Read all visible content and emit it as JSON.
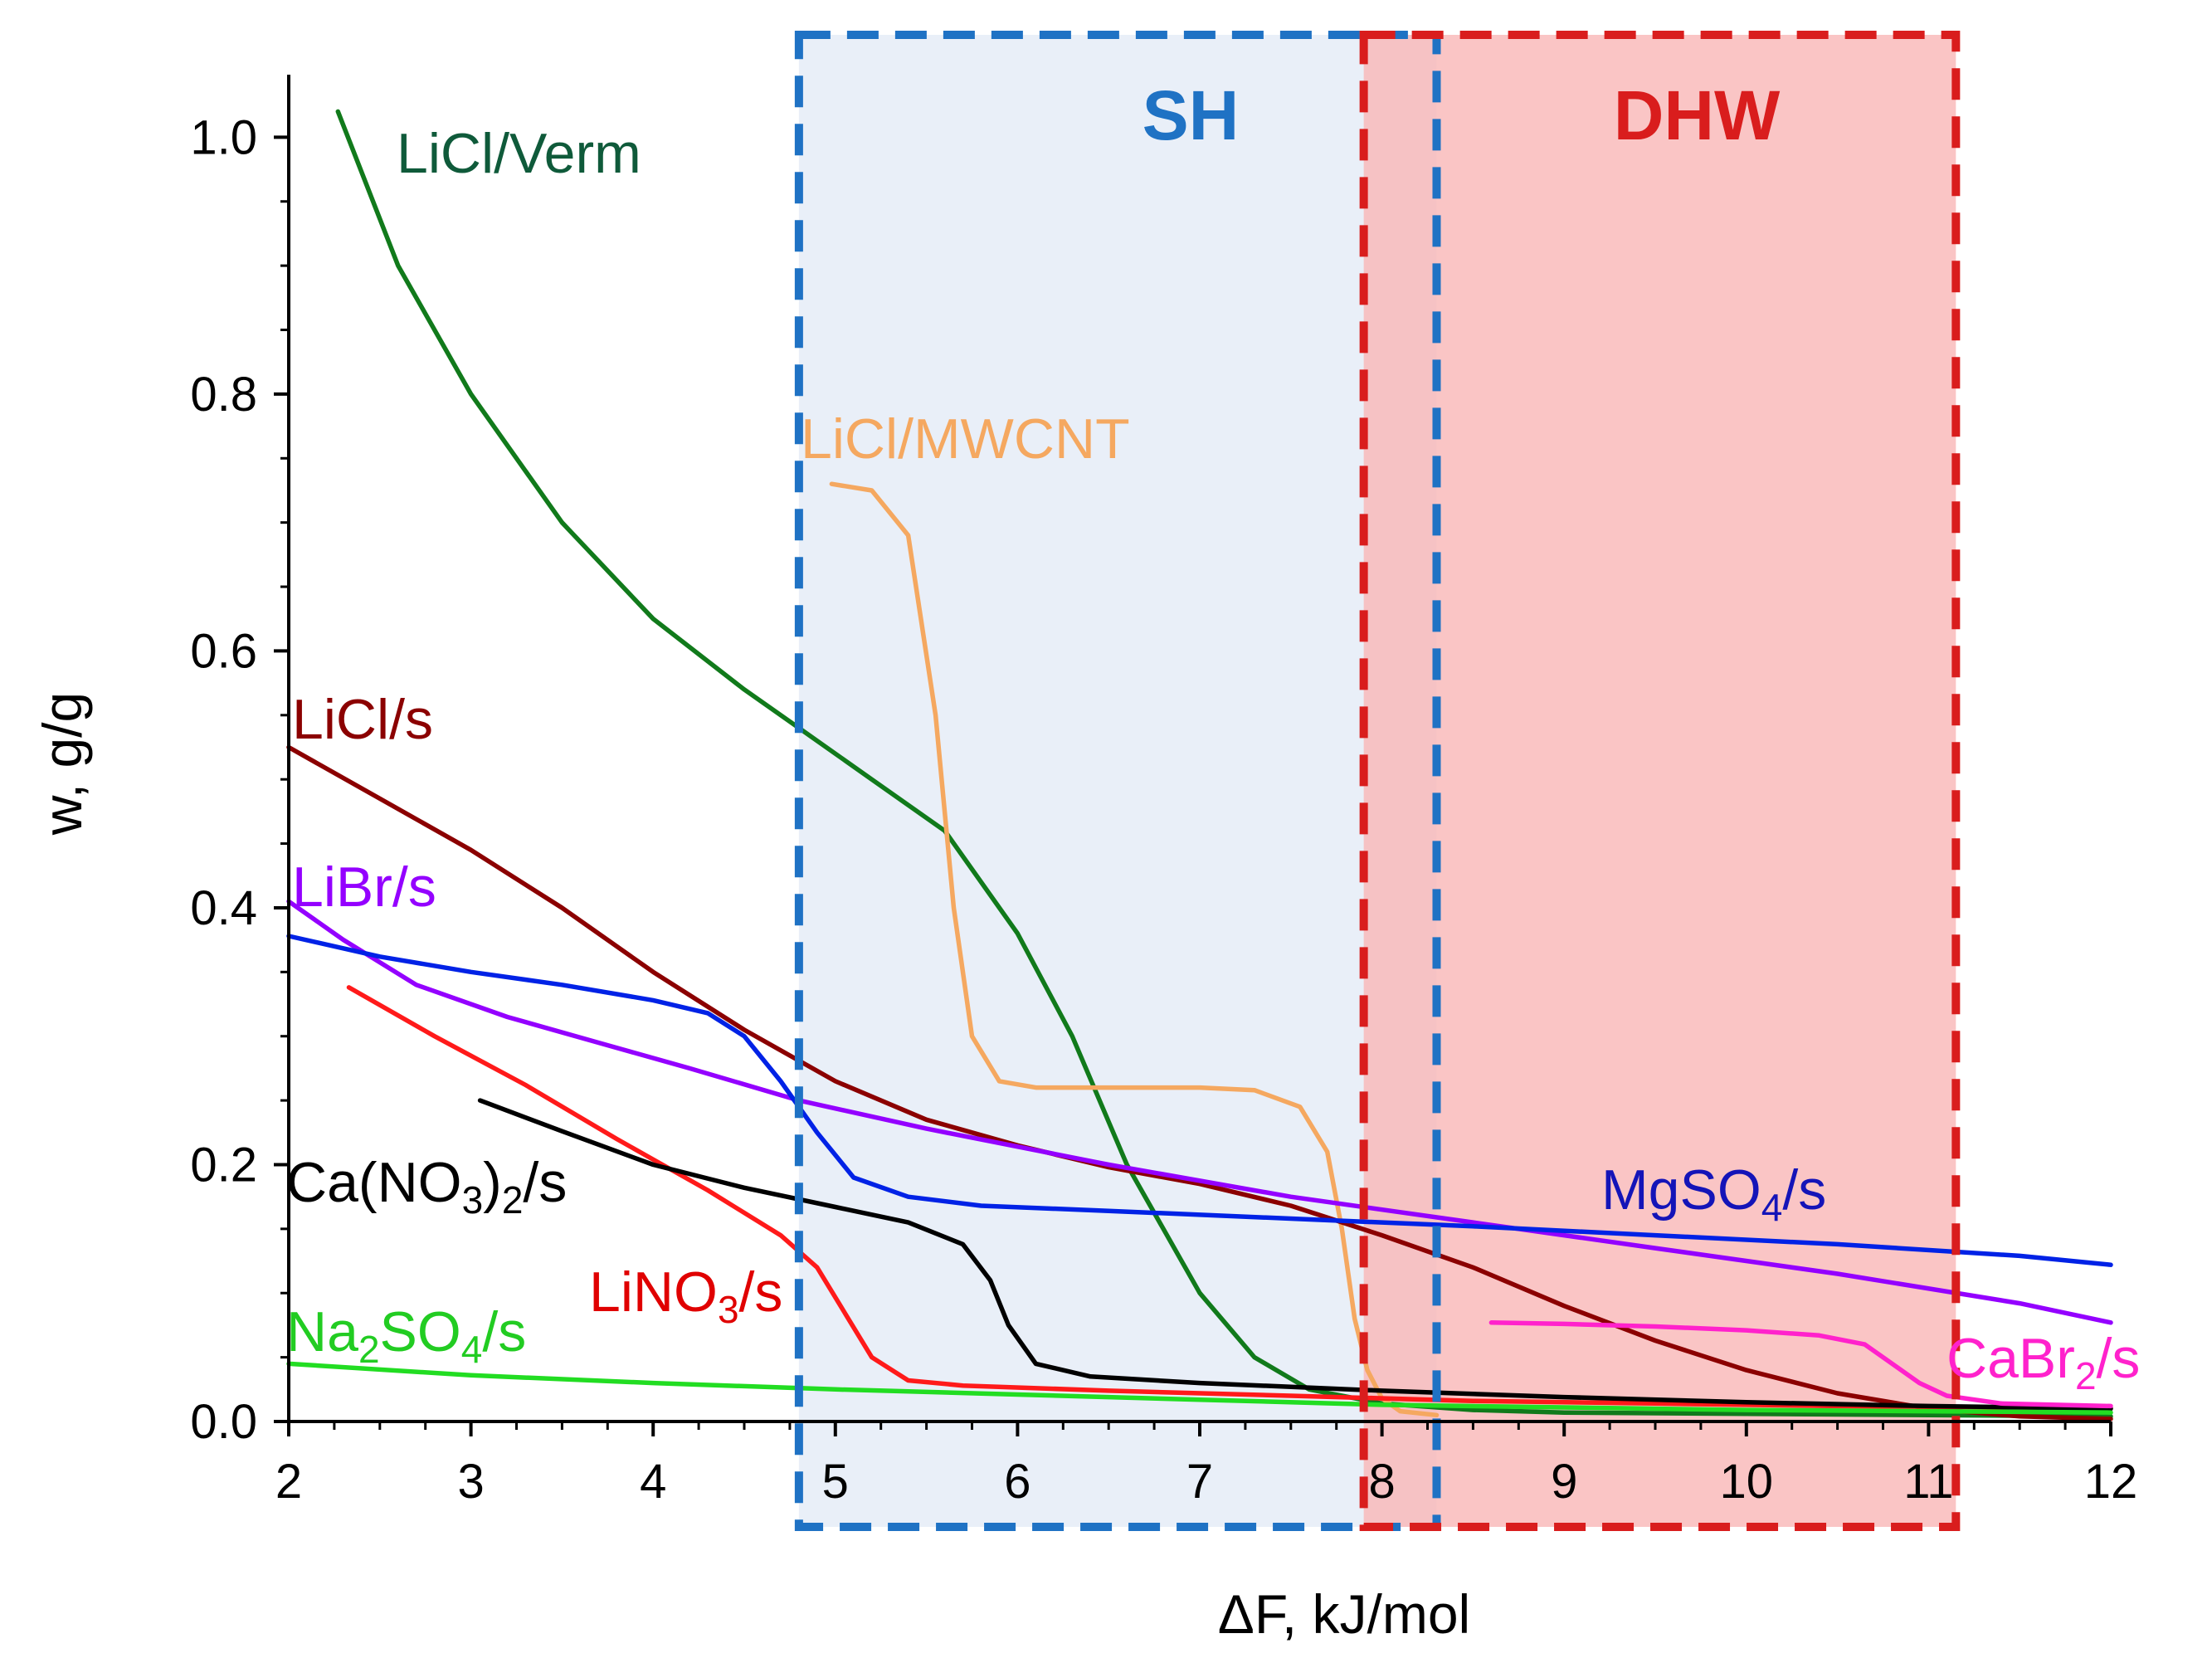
{
  "chart_data": {
    "type": "line",
    "xlabel": "ΔF, kJ/mol",
    "ylabel": "w, g/g",
    "xlim": [
      2,
      12
    ],
    "ylim": [
      0,
      1.05
    ],
    "x_ticks": [
      "2",
      "3",
      "4",
      "5",
      "6",
      "7",
      "8",
      "9",
      "10",
      "11",
      "12"
    ],
    "y_ticks": [
      "0.0",
      "0.2",
      "0.4",
      "0.6",
      "0.8",
      "1.0"
    ],
    "grid": false,
    "regions": [
      {
        "label": "SH",
        "x_start": 4.8,
        "x_end": 8.3,
        "color": "#1f72c4",
        "fill": "#dbe4f4"
      },
      {
        "label": "DHW",
        "x_start": 7.9,
        "x_end": 11.15,
        "color": "#d91d1d",
        "fill": "#f9b8b8"
      }
    ],
    "series": [
      {
        "name": "LiCl/Verm",
        "label_parts": [
          {
            "t": "LiCl/Verm"
          }
        ],
        "color": "#117a1b",
        "label_color": "#0f5a3a",
        "x": [
          2.27,
          2.6,
          3.0,
          3.5,
          4.0,
          4.5,
          4.8,
          5.2,
          5.6,
          6.0,
          6.3,
          6.6,
          7.0,
          7.3,
          7.6,
          8.0,
          8.5,
          9.0,
          10.0,
          11.0,
          12.0
        ],
        "y": [
          1.02,
          0.9,
          0.8,
          0.7,
          0.625,
          0.57,
          0.54,
          0.5,
          0.46,
          0.38,
          0.3,
          0.2,
          0.1,
          0.05,
          0.025,
          0.014,
          0.009,
          0.007,
          0.006,
          0.005,
          0.004
        ]
      },
      {
        "name": "LiCl/MWCNT",
        "label_parts": [
          {
            "t": "LiCl/MWCNT"
          }
        ],
        "color": "#f5a860",
        "label_color": "#f5a860",
        "x": [
          4.98,
          5.2,
          5.4,
          5.55,
          5.65,
          5.75,
          5.9,
          6.1,
          6.5,
          7.0,
          7.3,
          7.55,
          7.7,
          7.78,
          7.85,
          7.92,
          8.0,
          8.1,
          8.3
        ],
        "y": [
          0.73,
          0.725,
          0.69,
          0.55,
          0.4,
          0.3,
          0.265,
          0.26,
          0.26,
          0.26,
          0.258,
          0.245,
          0.21,
          0.15,
          0.08,
          0.04,
          0.018,
          0.008,
          0.005
        ]
      },
      {
        "name": "LiCl/s",
        "label_parts": [
          {
            "t": "LiCl/s"
          }
        ],
        "color": "#8b0000",
        "label_color": "#8b0000",
        "x": [
          2.0,
          2.5,
          3.0,
          3.5,
          4.0,
          4.5,
          5.0,
          5.5,
          6.0,
          6.5,
          7.0,
          7.5,
          8.0,
          8.5,
          9.0,
          9.5,
          10.0,
          10.5,
          11.0,
          11.5,
          12.0
        ],
        "y": [
          0.525,
          0.485,
          0.445,
          0.4,
          0.35,
          0.305,
          0.265,
          0.235,
          0.215,
          0.198,
          0.185,
          0.168,
          0.145,
          0.12,
          0.09,
          0.063,
          0.04,
          0.022,
          0.01,
          0.004,
          0.002
        ]
      },
      {
        "name": "LiBr/s",
        "label_parts": [
          {
            "t": "LiBr/s"
          }
        ],
        "color": "#9400ff",
        "label_color": "#9400ff",
        "x": [
          2.0,
          2.3,
          2.7,
          3.2,
          3.7,
          4.2,
          4.8,
          5.5,
          6.5,
          7.5,
          8.5,
          9.5,
          10.5,
          11.5,
          12.0
        ],
        "y": [
          0.405,
          0.375,
          0.34,
          0.315,
          0.295,
          0.275,
          0.25,
          0.228,
          0.2,
          0.175,
          0.155,
          0.135,
          0.115,
          0.092,
          0.077
        ]
      },
      {
        "name": "MgSO4/s",
        "label_parts": [
          {
            "t": "MgSO"
          },
          {
            "t": "4",
            "sub": true
          },
          {
            "t": "/s"
          }
        ],
        "color": "#0022e6",
        "label_color": "#1414b8",
        "x": [
          2.0,
          2.5,
          3.0,
          3.5,
          4.0,
          4.3,
          4.5,
          4.7,
          4.9,
          5.1,
          5.4,
          5.8,
          6.5,
          7.5,
          8.5,
          9.5,
          10.5,
          11.5,
          12.0
        ],
        "y": [
          0.378,
          0.362,
          0.35,
          0.34,
          0.328,
          0.318,
          0.3,
          0.265,
          0.225,
          0.19,
          0.175,
          0.168,
          0.164,
          0.158,
          0.152,
          0.145,
          0.138,
          0.129,
          0.122
        ]
      },
      {
        "name": "LiNO3/s",
        "label_parts": [
          {
            "t": "LiNO"
          },
          {
            "t": "3",
            "sub": true
          },
          {
            "t": "/s"
          }
        ],
        "color": "#ff1a1a",
        "label_color": "#e00000",
        "x": [
          2.33,
          2.8,
          3.3,
          3.8,
          4.3,
          4.7,
          4.9,
          5.05,
          5.2,
          5.4,
          5.7,
          6.5,
          7.5,
          8.5,
          9.5,
          10.5,
          11.5,
          12.0
        ],
        "y": [
          0.338,
          0.3,
          0.262,
          0.22,
          0.18,
          0.145,
          0.12,
          0.085,
          0.05,
          0.032,
          0.028,
          0.024,
          0.02,
          0.016,
          0.014,
          0.012,
          0.011,
          0.01
        ]
      },
      {
        "name": "Ca(NO3)2/s",
        "label_parts": [
          {
            "t": "Ca(NO"
          },
          {
            "t": "3",
            "sub": true
          },
          {
            "t": ")"
          },
          {
            "t": "2",
            "sub": true
          },
          {
            "t": "/s"
          }
        ],
        "color": "#000000",
        "label_color": "#000000",
        "x": [
          3.05,
          3.5,
          4.0,
          4.5,
          5.0,
          5.4,
          5.7,
          5.85,
          5.95,
          6.1,
          6.4,
          7.0,
          8.0,
          9.0,
          10.0,
          11.0,
          12.0
        ],
        "y": [
          0.25,
          0.226,
          0.2,
          0.182,
          0.167,
          0.155,
          0.138,
          0.11,
          0.075,
          0.045,
          0.035,
          0.03,
          0.024,
          0.019,
          0.015,
          0.012,
          0.01
        ]
      },
      {
        "name": "Na2SO4/s",
        "label_parts": [
          {
            "t": "Na"
          },
          {
            "t": "2",
            "sub": true
          },
          {
            "t": "SO"
          },
          {
            "t": "4",
            "sub": true
          },
          {
            "t": "/s"
          }
        ],
        "color": "#22dd22",
        "label_color": "#22cc22",
        "x": [
          2.0,
          3.0,
          4.0,
          5.0,
          6.0,
          7.0,
          8.0,
          9.0,
          10.0,
          11.0,
          12.0
        ],
        "y": [
          0.045,
          0.036,
          0.03,
          0.025,
          0.021,
          0.017,
          0.013,
          0.011,
          0.009,
          0.008,
          0.007
        ]
      },
      {
        "name": "CaBr2/s",
        "label_parts": [
          {
            "t": "CaBr"
          },
          {
            "t": "2",
            "sub": true
          },
          {
            "t": "/s"
          }
        ],
        "color": "#ff22cc",
        "label_color": "#ff22cc",
        "x": [
          8.6,
          9.0,
          9.5,
          10.0,
          10.4,
          10.65,
          10.8,
          10.95,
          11.1,
          11.4,
          12.0
        ],
        "y": [
          0.077,
          0.076,
          0.074,
          0.071,
          0.067,
          0.06,
          0.045,
          0.03,
          0.02,
          0.014,
          0.012
        ]
      }
    ]
  }
}
